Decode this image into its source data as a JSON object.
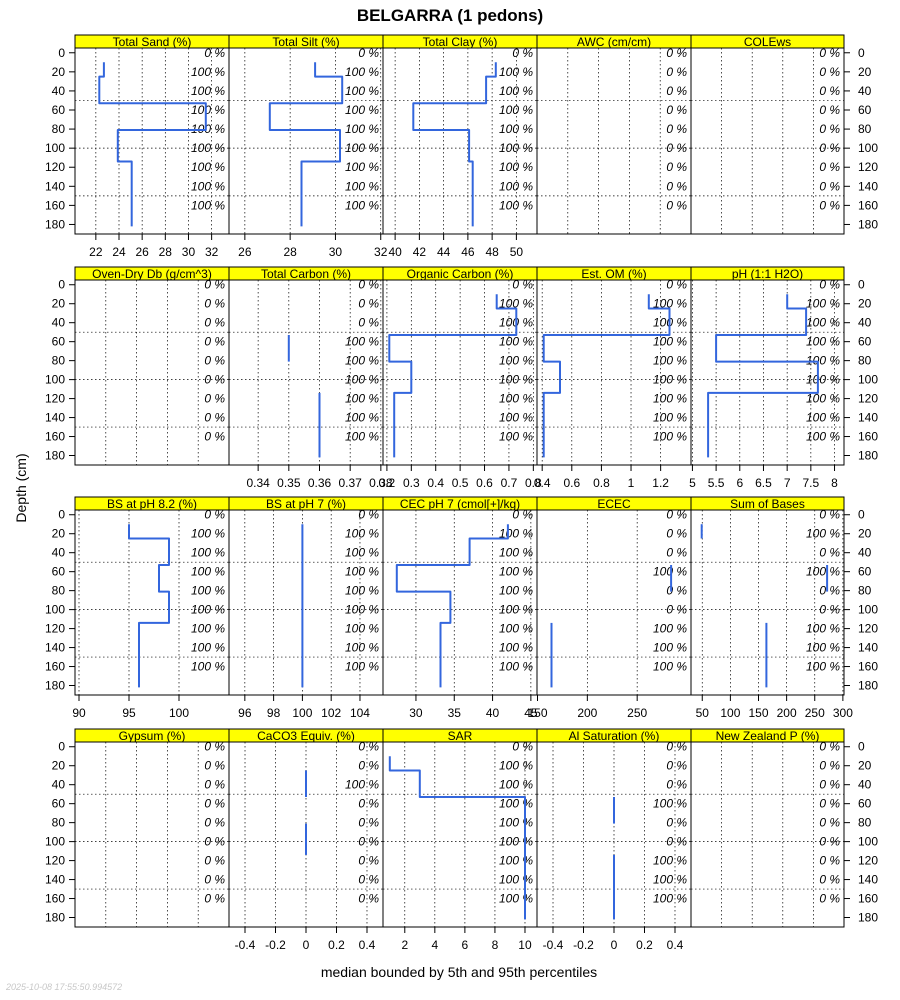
{
  "chart_data": {
    "type": "line",
    "title": "BELGARRA (1 pedons)",
    "ylabel": "Depth (cm)",
    "xlabel": "median bounded by 5th and 95th percentiles",
    "timestamp": "2025-10-08 17:55:50.994572",
    "depth_ticks": [
      0,
      20,
      40,
      60,
      80,
      100,
      120,
      140,
      160,
      180
    ],
    "depth_range": [
      -5,
      190
    ],
    "percent_labels_depths": [
      0,
      20,
      40,
      60,
      80,
      100,
      120,
      140,
      160
    ],
    "panels": [
      {
        "name": "Total Sand (%)",
        "xlim": [
          20.2,
          33.5
        ],
        "xticks": [
          22,
          24,
          26,
          28,
          30,
          32
        ],
        "percent_labels": [
          "0 %",
          "100 %",
          "100 %",
          "100 %",
          "100 %",
          "100 %",
          "100 %",
          "100 %",
          "100 %"
        ],
        "profile": [
          [
            22.7,
            10
          ],
          [
            22.7,
            25
          ],
          [
            22.3,
            25
          ],
          [
            22.3,
            53
          ],
          [
            31.5,
            53
          ],
          [
            31.5,
            81
          ],
          [
            23.9,
            81
          ],
          [
            23.9,
            114
          ],
          [
            25.1,
            114
          ],
          [
            25.1,
            182
          ]
        ]
      },
      {
        "name": "Total Silt (%)",
        "xlim": [
          25.3,
          32.1
        ],
        "xticks": [
          26,
          28,
          30,
          32
        ],
        "percent_labels": [
          "0 %",
          "100 %",
          "100 %",
          "100 %",
          "100 %",
          "100 %",
          "100 %",
          "100 %",
          "100 %"
        ],
        "profile": [
          [
            29.1,
            10
          ],
          [
            29.1,
            25
          ],
          [
            30.3,
            25
          ],
          [
            30.3,
            53
          ],
          [
            27.1,
            53
          ],
          [
            27.1,
            81
          ],
          [
            30.2,
            81
          ],
          [
            30.2,
            114
          ],
          [
            28.5,
            114
          ],
          [
            28.5,
            182
          ]
        ]
      },
      {
        "name": "Total Clay (%)",
        "xlim": [
          39,
          51.7
        ],
        "xticks": [
          40,
          42,
          44,
          46,
          48,
          50
        ],
        "percent_labels": [
          "0 %",
          "100 %",
          "100 %",
          "100 %",
          "100 %",
          "100 %",
          "100 %",
          "100 %",
          "100 %"
        ],
        "profile": [
          [
            48.3,
            10
          ],
          [
            48.3,
            25
          ],
          [
            47.5,
            25
          ],
          [
            47.5,
            53
          ],
          [
            41.5,
            53
          ],
          [
            41.5,
            81
          ],
          [
            46.1,
            81
          ],
          [
            46.1,
            114
          ],
          [
            46.4,
            114
          ],
          [
            46.4,
            182
          ]
        ]
      },
      {
        "name": "AWC (cm/cm)",
        "xlim": [
          0,
          1
        ],
        "xticks": [],
        "percent_labels": [
          "0 %",
          "0 %",
          "0 %",
          "0 %",
          "0 %",
          "0 %",
          "0 %",
          "0 %",
          "0 %"
        ],
        "profile": []
      },
      {
        "name": "COLEws",
        "xlim": [
          0,
          1
        ],
        "xticks": [],
        "percent_labels": [
          "0 %",
          "0 %",
          "0 %",
          "0 %",
          "0 %",
          "0 %",
          "0 %",
          "0 %",
          "0 %"
        ],
        "profile": []
      },
      {
        "name": "Oven-Dry Db (g/cm^3)",
        "xlim": [
          0,
          1
        ],
        "xticks": [],
        "percent_labels": [
          "0 %",
          "0 %",
          "0 %",
          "0 %",
          "0 %",
          "0 %",
          "0 %",
          "0 %",
          "0 %"
        ],
        "profile": []
      },
      {
        "name": "Total Carbon (%)",
        "xlim": [
          0.3305,
          0.3807
        ],
        "xticks": [
          0.34,
          0.35,
          0.36,
          0.37,
          0.38
        ],
        "percent_labels": [
          "0 %",
          "0 %",
          "0 %",
          "100 %",
          "100 %",
          "100 %",
          "100 %",
          "100 %",
          "100 %"
        ],
        "profile": [
          [
            0.35,
            53
          ],
          [
            0.35,
            81
          ],
          [
            0.35,
            "gap"
          ],
          [
            0.36,
            114
          ],
          [
            0.36,
            182
          ]
        ]
      },
      {
        "name": "Organic Carbon (%)",
        "xlim": [
          0.184,
          0.815
        ],
        "xticks": [
          0.2,
          0.3,
          0.4,
          0.5,
          0.6,
          0.7,
          0.8
        ],
        "percent_labels": [
          "0 %",
          "100 %",
          "100 %",
          "100 %",
          "100 %",
          "100 %",
          "100 %",
          "100 %",
          "100 %"
        ],
        "profile": [
          [
            0.65,
            10
          ],
          [
            0.65,
            25
          ],
          [
            0.73,
            25
          ],
          [
            0.73,
            53
          ],
          [
            0.21,
            53
          ],
          [
            0.21,
            81
          ],
          [
            0.3,
            81
          ],
          [
            0.3,
            114
          ],
          [
            0.23,
            114
          ],
          [
            0.23,
            182
          ]
        ]
      },
      {
        "name": "Est. OM (%)",
        "xlim": [
          0.365,
          1.405
        ],
        "xticks": [
          0.4,
          0.6,
          0.8,
          1.0,
          1.2
        ],
        "percent_labels": [
          "0 %",
          "100 %",
          "100 %",
          "100 %",
          "100 %",
          "100 %",
          "100 %",
          "100 %",
          "100 %"
        ],
        "profile": [
          [
            1.12,
            10
          ],
          [
            1.12,
            25
          ],
          [
            1.26,
            25
          ],
          [
            1.26,
            53
          ],
          [
            0.41,
            53
          ],
          [
            0.41,
            81
          ],
          [
            0.52,
            81
          ],
          [
            0.52,
            114
          ],
          [
            0.41,
            114
          ],
          [
            0.41,
            182
          ]
        ]
      },
      {
        "name": "pH (1:1 H2O)",
        "xlim": [
          4.97,
          8.2
        ],
        "xticks": [
          5.0,
          5.5,
          6.0,
          6.5,
          7.0,
          7.5,
          8.0
        ],
        "percent_labels": [
          "0 %",
          "100 %",
          "100 %",
          "100 %",
          "100 %",
          "100 %",
          "100 %",
          "100 %",
          "100 %"
        ],
        "profile": [
          [
            7.0,
            10
          ],
          [
            7.0,
            25
          ],
          [
            7.4,
            25
          ],
          [
            7.4,
            53
          ],
          [
            5.5,
            53
          ],
          [
            5.5,
            81
          ],
          [
            7.65,
            81
          ],
          [
            7.65,
            114
          ],
          [
            5.33,
            114
          ],
          [
            5.33,
            182
          ]
        ]
      },
      {
        "name": "BS at pH 8.2 (%)",
        "xlim": [
          89.6,
          105
        ],
        "xticks": [
          90,
          95,
          100
        ],
        "percent_labels": [
          "0 %",
          "100 %",
          "100 %",
          "100 %",
          "100 %",
          "100 %",
          "100 %",
          "100 %",
          "100 %"
        ],
        "profile": [
          [
            95.0,
            10
          ],
          [
            95.0,
            25
          ],
          [
            99.0,
            25
          ],
          [
            99.0,
            53
          ],
          [
            98.0,
            53
          ],
          [
            98.0,
            81
          ],
          [
            99.0,
            81
          ],
          [
            99.0,
            114
          ],
          [
            96.0,
            114
          ],
          [
            96.0,
            182
          ]
        ]
      },
      {
        "name": "BS at pH 7 (%)",
        "xlim": [
          94.9,
          105.6
        ],
        "xticks": [
          96,
          98,
          100,
          102,
          104
        ],
        "percent_labels": [
          "0 %",
          "100 %",
          "100 %",
          "100 %",
          "100 %",
          "100 %",
          "100 %",
          "100 %",
          "100 %"
        ],
        "profile": [
          [
            100,
            10
          ],
          [
            100,
            182
          ]
        ]
      },
      {
        "name": "CEC pH 7 (cmol[+]/kg)",
        "xlim": [
          25.7,
          45.8
        ],
        "xticks": [
          30,
          35,
          40,
          45
        ],
        "percent_labels": [
          "0 %",
          "100 %",
          "100 %",
          "100 %",
          "100 %",
          "100 %",
          "100 %",
          "100 %",
          "100 %"
        ],
        "profile": [
          [
            42.0,
            10
          ],
          [
            42.0,
            25
          ],
          [
            37.0,
            25
          ],
          [
            37.0,
            53
          ],
          [
            27.5,
            53
          ],
          [
            27.5,
            81
          ],
          [
            34.5,
            81
          ],
          [
            34.5,
            114
          ],
          [
            33.2,
            114
          ],
          [
            33.2,
            182
          ]
        ]
      },
      {
        "name": "ECEC",
        "xlim": [
          149.5,
          304
        ],
        "xticks": [
          150,
          200,
          250
        ],
        "percent_labels": [
          "0 %",
          "0 %",
          "0 %",
          "100 %",
          "0 %",
          "0 %",
          "100 %",
          "100 %",
          "100 %"
        ],
        "profile": [
          [
            284,
            53
          ],
          [
            284,
            81
          ],
          [
            284,
            "gap"
          ],
          [
            164,
            114
          ],
          [
            164,
            182
          ]
        ]
      },
      {
        "name": "Sum of Bases",
        "xlim": [
          30,
          302
        ],
        "xticks": [
          50,
          100,
          150,
          200,
          250,
          300
        ],
        "percent_labels": [
          "0 %",
          "100 %",
          "0 %",
          "100 %",
          "0 %",
          "0 %",
          "100 %",
          "100 %",
          "100 %"
        ],
        "profile": [
          [
            49,
            10
          ],
          [
            49,
            25
          ],
          [
            49,
            "gap"
          ],
          [
            272,
            53
          ],
          [
            272,
            81
          ],
          [
            272,
            "gap"
          ],
          [
            164,
            114
          ],
          [
            164,
            182
          ]
        ]
      },
      {
        "name": "Gypsum (%)",
        "xlim": [
          0,
          1
        ],
        "xticks": [],
        "percent_labels": [
          "0 %",
          "0 %",
          "0 %",
          "0 %",
          "0 %",
          "0 %",
          "0 %",
          "0 %",
          "0 %"
        ],
        "profile": []
      },
      {
        "name": "CaCO3 Equiv. (%)",
        "xlim": [
          -0.505,
          0.505
        ],
        "xticks": [
          -0.4,
          -0.2,
          0.0,
          0.2,
          0.4
        ],
        "percent_labels": [
          "0 %",
          "0 %",
          "100 %",
          "0 %",
          "0 %",
          "0 %",
          "0 %",
          "0 %",
          "0 %"
        ],
        "profile": [
          [
            0,
            25
          ],
          [
            0,
            53
          ],
          [
            0,
            "gap"
          ],
          [
            0,
            81
          ],
          [
            0,
            114
          ]
        ]
      },
      {
        "name": "SAR",
        "xlim": [
          0.55,
          10.8
        ],
        "xticks": [
          2,
          4,
          6,
          8,
          10
        ],
        "percent_labels": [
          "0 %",
          "100 %",
          "100 %",
          "100 %",
          "100 %",
          "100 %",
          "100 %",
          "100 %",
          "100 %"
        ],
        "profile": [
          [
            1.0,
            10
          ],
          [
            1.0,
            25
          ],
          [
            3.0,
            25
          ],
          [
            3.0,
            53
          ],
          [
            10.0,
            53
          ],
          [
            10.0,
            182
          ]
        ]
      },
      {
        "name": "Al Saturation (%)",
        "xlim": [
          -0.505,
          0.505
        ],
        "xticks": [
          -0.4,
          -0.2,
          0.0,
          0.2,
          0.4
        ],
        "percent_labels": [
          "0 %",
          "0 %",
          "0 %",
          "100 %",
          "0 %",
          "0 %",
          "100 %",
          "100 %",
          "100 %"
        ],
        "profile": [
          [
            0,
            53
          ],
          [
            0,
            81
          ],
          [
            0,
            "gap"
          ],
          [
            0,
            114
          ],
          [
            0,
            182
          ]
        ]
      },
      {
        "name": "New Zealand P (%)",
        "xlim": [
          0,
          1
        ],
        "xticks": [],
        "percent_labels": [
          "0 %",
          "0 %",
          "0 %",
          "0 %",
          "0 %",
          "0 %",
          "0 %",
          "0 %",
          "0 %"
        ],
        "profile": []
      }
    ]
  },
  "colors": {
    "strip": "#ffff00",
    "line": "#3366dd",
    "grid": "#000000",
    "panel_border": "#000000"
  }
}
